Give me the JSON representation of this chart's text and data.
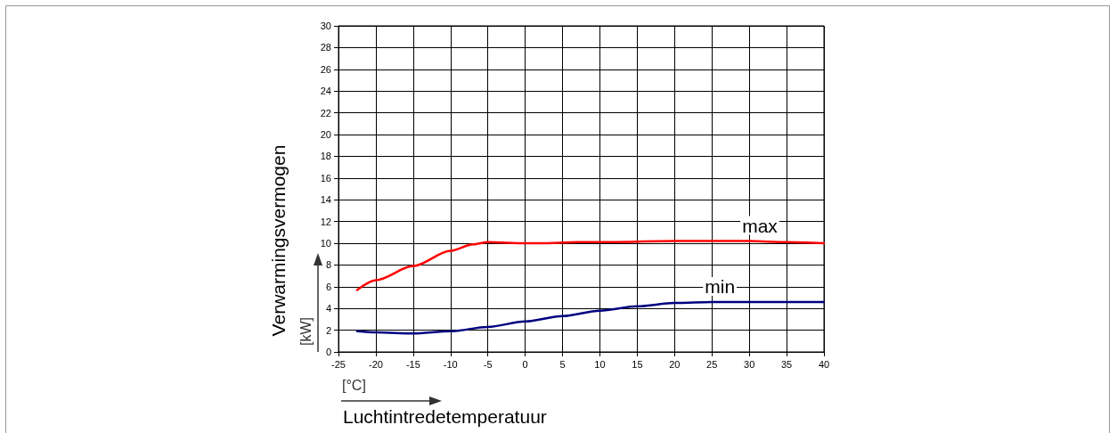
{
  "chart_data": {
    "type": "line",
    "xlabel": "Luchtintredetemperatuur",
    "ylabel": "Verwarmingsvermogen",
    "annotations": [
      "[kW]",
      "[°C]"
    ],
    "series": [
      {
        "name": "max",
        "color": "#ff0000",
        "x": [
          -22.5,
          -20,
          -15,
          -10,
          -7,
          -5,
          0,
          2,
          7,
          10,
          20,
          30,
          35,
          40
        ],
        "values": [
          5.7,
          6.6,
          7.9,
          9.3,
          9.9,
          10.1,
          10.0,
          10.0,
          10.1,
          10.1,
          10.2,
          10.2,
          10.1,
          10.0
        ]
      },
      {
        "name": "min",
        "color": "#000080",
        "x": [
          -22.5,
          -20,
          -15,
          -10,
          -5,
          0,
          5,
          10,
          15,
          20,
          25,
          30,
          40
        ],
        "values": [
          1.9,
          1.8,
          1.7,
          1.9,
          2.3,
          2.8,
          3.3,
          3.8,
          4.2,
          4.5,
          4.6,
          4.6,
          4.6
        ]
      }
    ],
    "xlim": [
      -25,
      40
    ],
    "xticks": [
      -25,
      -20,
      -15,
      -10,
      -5,
      0,
      5,
      10,
      15,
      20,
      25,
      30,
      35,
      40
    ],
    "ylim": [
      0,
      30
    ],
    "yticks": [
      0,
      2,
      4,
      6,
      8,
      10,
      12,
      14,
      16,
      18,
      20,
      22,
      24,
      26,
      28,
      30
    ],
    "grid": true,
    "legend": false,
    "marker": "none",
    "line_style": "solid"
  }
}
